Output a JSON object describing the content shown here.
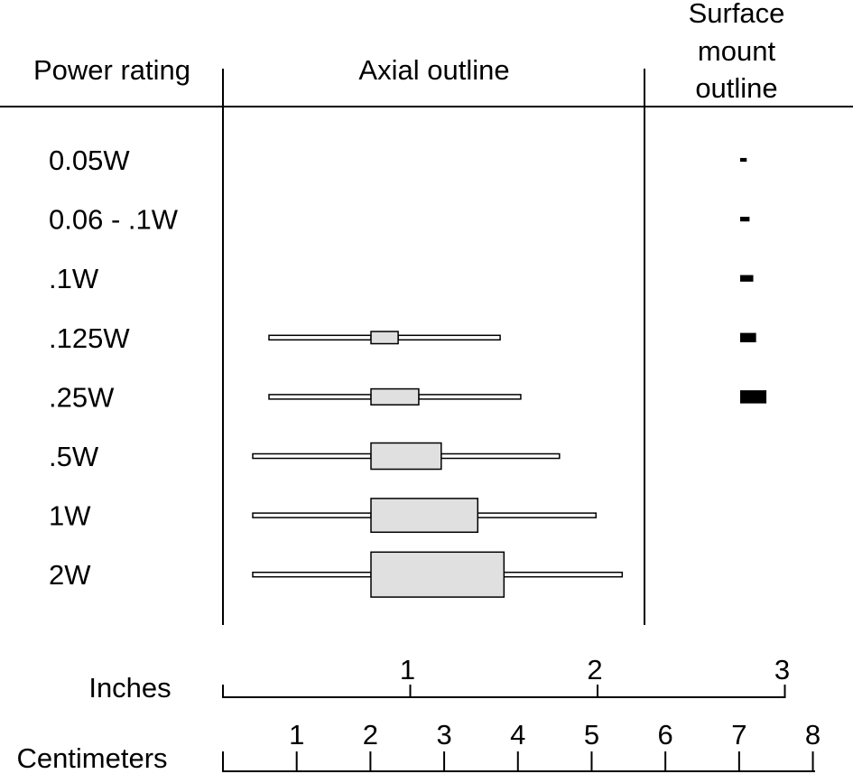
{
  "headers": {
    "power_rating": "Power rating",
    "axial_outline": "Axial outline",
    "smd_line1": "Surface",
    "smd_line2": "mount",
    "smd_line3": "outline"
  },
  "rows": [
    {
      "label": "0.05W",
      "axial": null,
      "smd": {
        "length": 0.035,
        "width": 0.02
      }
    },
    {
      "label": "0.06 - .1W",
      "axial": null,
      "smd": {
        "length": 0.05,
        "width": 0.025
      }
    },
    {
      "label": ".1W",
      "axial": null,
      "smd": {
        "length": 0.07,
        "width": 0.035
      }
    },
    {
      "label": ".125W",
      "axial": {
        "lead_left": 0.55,
        "body": 0.145,
        "lead_right": 0.55,
        "body_height": 0.065
      },
      "smd": {
        "length": 0.085,
        "width": 0.05
      }
    },
    {
      "label": ".25W",
      "axial": {
        "lead_left": 0.55,
        "body": 0.255,
        "lead_right": 0.55,
        "body_height": 0.085
      },
      "smd": {
        "length": 0.14,
        "width": 0.07
      }
    },
    {
      "label": ".5W",
      "axial": {
        "lead_left": 0.64,
        "body": 0.375,
        "lead_right": 0.64,
        "body_height": 0.14
      },
      "smd": null
    },
    {
      "label": "1W",
      "axial": {
        "lead_left": 0.64,
        "body": 0.57,
        "lead_right": 0.64,
        "body_height": 0.18
      },
      "smd": null
    },
    {
      "label": "2W",
      "axial": {
        "lead_left": 0.64,
        "body": 0.71,
        "lead_right": 0.64,
        "body_height": 0.24
      },
      "smd": null
    }
  ],
  "scales": {
    "inches": {
      "label": "Inches",
      "ticks": [
        "1",
        "2",
        "3"
      ]
    },
    "centimeters": {
      "label": "Centimeters",
      "ticks": [
        "1",
        "2",
        "3",
        "4",
        "5",
        "6",
        "7",
        "8"
      ]
    }
  },
  "colors": {
    "body_fill": "#e0e0e0",
    "lead_fill": "#ffffff",
    "smd_fill": "#000000",
    "line": "#000000"
  }
}
